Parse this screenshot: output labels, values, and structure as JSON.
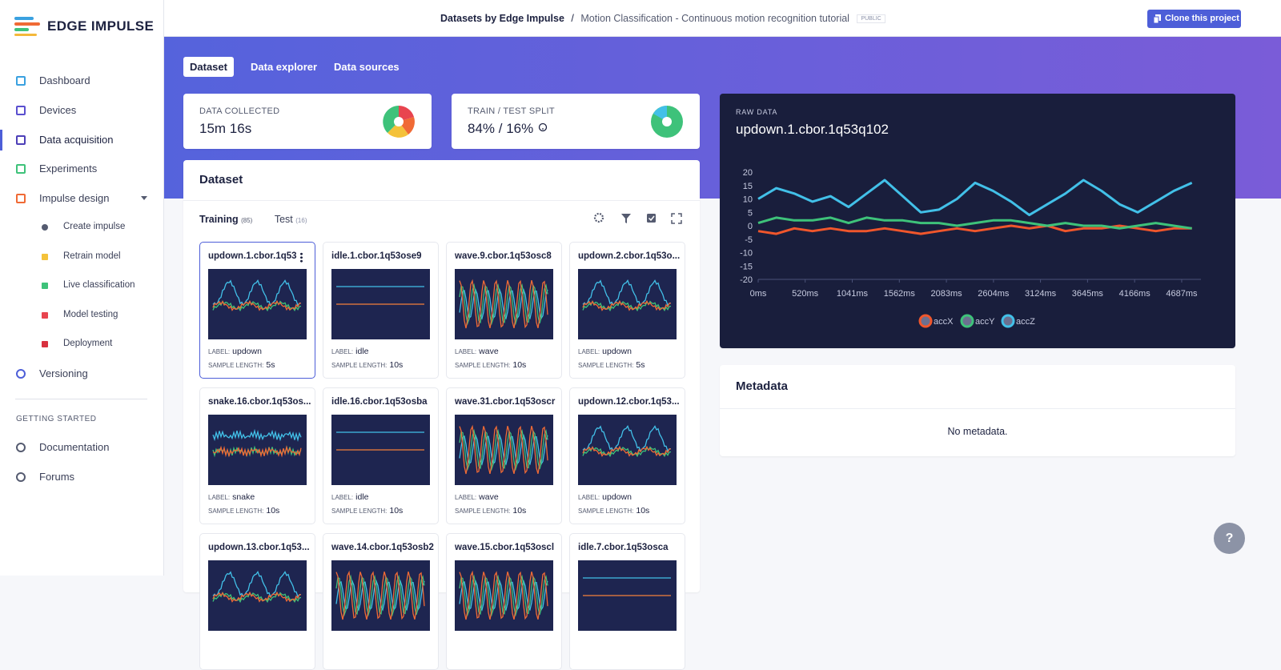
{
  "sidebar": {
    "brand": "EDGE IMPULSE",
    "nav": [
      "Dashboard",
      "Devices",
      "Data acquisition",
      "Experiments",
      "Impulse design"
    ],
    "impulse_steps": [
      "Create impulse",
      "Retrain model",
      "Live classification",
      "Model testing",
      "Deployment"
    ],
    "versioning": "Versioning",
    "section": "GETTING STARTED",
    "links": [
      "Documentation",
      "Forums"
    ]
  },
  "header": {
    "owner": "Datasets by Edge Impulse",
    "separator": "/",
    "project": "Motion Classification - Continuous motion recognition tutorial",
    "badge": "PUBLIC",
    "clone_button": "Clone this project"
  },
  "tabs": [
    "Dataset",
    "Data explorer",
    "Data sources"
  ],
  "stats": [
    {
      "label": "DATA COLLECTED",
      "value": "15m 16s"
    },
    {
      "label": "TRAIN / TEST SPLIT",
      "value": "84% / 16%"
    }
  ],
  "dataset": {
    "title": "Dataset",
    "tabs": [
      {
        "label": "Training",
        "count": "(85)"
      },
      {
        "label": "Test",
        "count": "(16)"
      }
    ],
    "label_caption": "LABEL:",
    "length_caption": "SAMPLE LENGTH:",
    "samples": [
      {
        "name": "updown.1.cbor.1q53",
        "label": "updown",
        "length": "5s"
      },
      {
        "name": "idle.1.cbor.1q53ose9",
        "label": "idle",
        "length": "10s"
      },
      {
        "name": "wave.9.cbor.1q53osc8",
        "label": "wave",
        "length": "10s"
      },
      {
        "name": "updown.2.cbor.1q53o...",
        "label": "updown",
        "length": "5s"
      },
      {
        "name": "snake.16.cbor.1q53os...",
        "label": "snake",
        "length": "10s"
      },
      {
        "name": "idle.16.cbor.1q53osba",
        "label": "idle",
        "length": "10s"
      },
      {
        "name": "wave.31.cbor.1q53oscr",
        "label": "wave",
        "length": "10s"
      },
      {
        "name": "updown.12.cbor.1q53...",
        "label": "updown",
        "length": "10s"
      },
      {
        "name": "updown.13.cbor.1q53..."
      },
      {
        "name": "wave.14.cbor.1q53osb2"
      },
      {
        "name": "wave.15.cbor.1q53oscl"
      },
      {
        "name": "idle.7.cbor.1q53osca"
      }
    ]
  },
  "chart_data": {
    "type": "line",
    "subtitle": "RAW DATA",
    "title": "updown.1.cbor.1q53q102",
    "x": [
      0,
      200,
      400,
      600,
      800,
      1000,
      1200,
      1400,
      1600,
      1800,
      2000,
      2200,
      2400,
      2600,
      2800,
      3000,
      3200,
      3400,
      3600,
      3800,
      4000,
      4200,
      4400,
      4600,
      4800
    ],
    "series": [
      {
        "name": "accX",
        "color": "#f0562c",
        "values": [
          -2,
          -3,
          -1,
          -2,
          -1,
          -2,
          -2,
          -1,
          -2,
          -3,
          -2,
          -1,
          -2,
          -1,
          0,
          -1,
          0,
          -2,
          -1,
          -1,
          0,
          -1,
          -2,
          -1,
          -1
        ]
      },
      {
        "name": "accY",
        "color": "#3ec27a",
        "values": [
          1,
          3,
          2,
          2,
          3,
          1,
          3,
          2,
          2,
          1,
          1,
          0,
          1,
          2,
          2,
          1,
          0,
          1,
          0,
          0,
          -1,
          0,
          1,
          0,
          -1
        ]
      },
      {
        "name": "accZ",
        "color": "#42c0e8",
        "values": [
          10,
          14,
          12,
          9,
          11,
          7,
          12,
          17,
          11,
          5,
          6,
          10,
          16,
          13,
          9,
          4,
          8,
          12,
          17,
          13,
          8,
          5,
          9,
          13,
          16
        ]
      }
    ],
    "xlim": [
      0,
      4900
    ],
    "ylim": [
      -20,
      20
    ],
    "xticks": [
      {
        "value": 0,
        "label": "0ms"
      },
      {
        "value": 520,
        "label": "520ms"
      },
      {
        "value": 1041,
        "label": "1041ms"
      },
      {
        "value": 1562,
        "label": "1562ms"
      },
      {
        "value": 2083,
        "label": "2083ms"
      },
      {
        "value": 2604,
        "label": "2604ms"
      },
      {
        "value": 3124,
        "label": "3124ms"
      },
      {
        "value": 3645,
        "label": "3645ms"
      },
      {
        "value": 4166,
        "label": "4166ms"
      },
      {
        "value": 4687,
        "label": "4687ms"
      }
    ],
    "yticks": [
      -20,
      -15,
      -10,
      -5,
      0,
      5,
      10,
      15,
      20
    ],
    "grid": false,
    "legend": "bottom"
  },
  "metadata": {
    "title": "Metadata",
    "empty": "No metadata."
  },
  "help_button": "?"
}
